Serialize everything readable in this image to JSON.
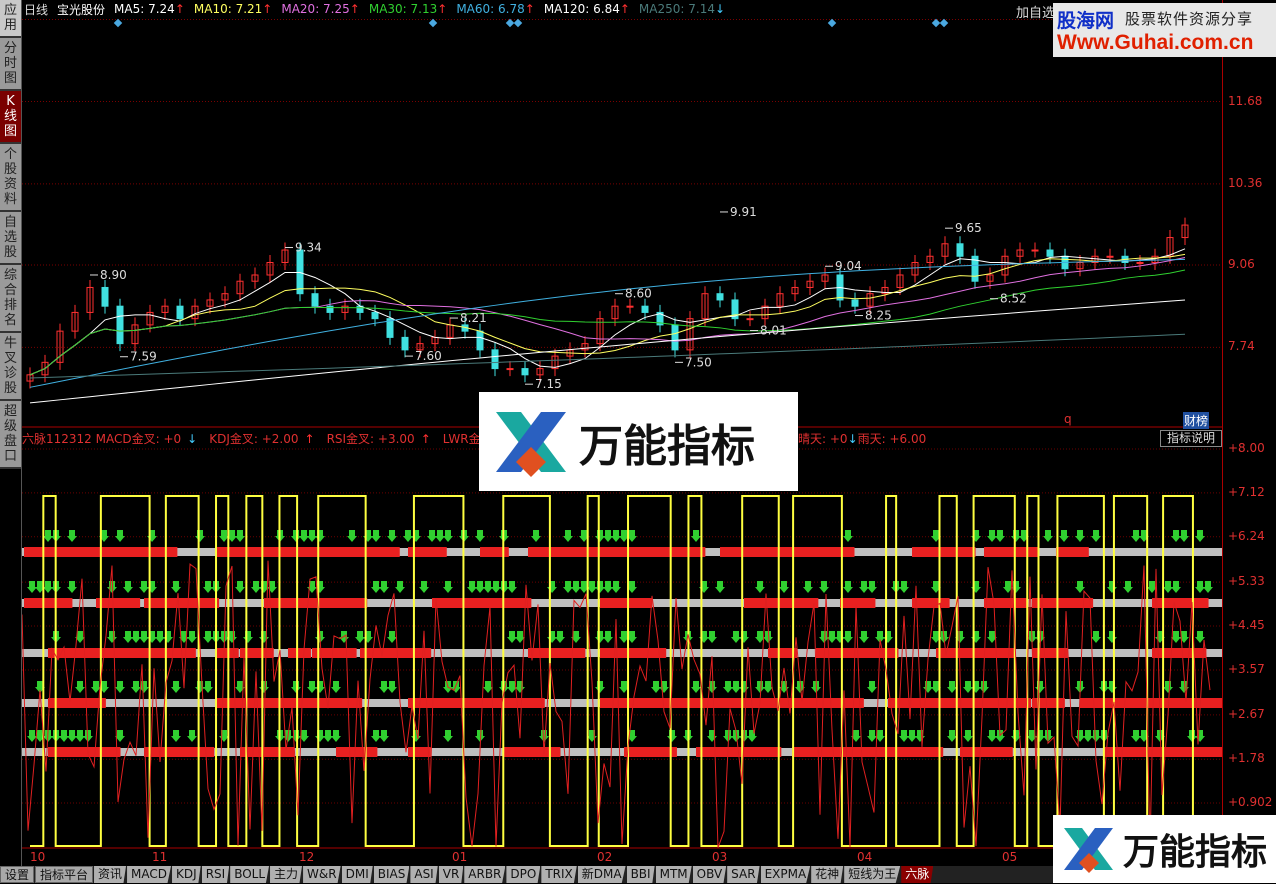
{
  "sidebar": {
    "items": [
      {
        "label": "应用",
        "icon": "play-pause-icon"
      },
      {
        "label": "分时图"
      },
      {
        "label": "K线图",
        "active": true
      },
      {
        "label": "个股资料"
      },
      {
        "label": "自选股"
      },
      {
        "label": "综合排名"
      },
      {
        "label": "牛叉诊股"
      },
      {
        "label": "超级盘口"
      }
    ]
  },
  "header": {
    "period": "日线",
    "stock_name": "宝光股份",
    "ma": [
      {
        "label": "MA5: 7.24",
        "dir": "up",
        "color": "#ffffff"
      },
      {
        "label": "MA10: 7.21",
        "dir": "up",
        "color": "#ffff60"
      },
      {
        "label": "MA20: 7.25",
        "dir": "up",
        "color": "#e070e0"
      },
      {
        "label": "MA30: 7.13",
        "dir": "up",
        "color": "#30d030"
      },
      {
        "label": "MA60: 6.78",
        "dir": "up",
        "color": "#40b0e0"
      },
      {
        "label": "MA120: 6.84",
        "dir": "up",
        "color": "#ffffff"
      },
      {
        "label": "MA250: 7.14",
        "dir": "down",
        "color": "#4a7a7a"
      }
    ],
    "add_watchlist": "加自选"
  },
  "banner": {
    "site": "股海网",
    "slogan": "股票软件资源分享",
    "url": "Www.Guhai.com.cn"
  },
  "watermark": {
    "text": "万能指标"
  },
  "price_axis": [
    "11.68",
    "10.36",
    "9.06",
    "7.74"
  ],
  "price_labels": [
    {
      "text": "8.90",
      "bar": 4,
      "price": 8.9
    },
    {
      "text": "7.59",
      "bar": 6,
      "price": 7.59
    },
    {
      "text": "9.34",
      "bar": 17,
      "price": 9.34
    },
    {
      "text": "7.60",
      "bar": 25,
      "price": 7.6
    },
    {
      "text": "8.21",
      "bar": 28,
      "price": 8.21
    },
    {
      "text": "7.15",
      "bar": 33,
      "price": 7.15
    },
    {
      "text": "8.60",
      "bar": 39,
      "price": 8.6
    },
    {
      "text": "7.50",
      "bar": 43,
      "price": 7.5
    },
    {
      "text": "9.91",
      "bar": 46,
      "price": 9.91
    },
    {
      "text": "8.01",
      "bar": 48,
      "price": 8.01
    },
    {
      "text": "9.04",
      "bar": 53,
      "price": 9.04
    },
    {
      "text": "8.25",
      "bar": 55,
      "price": 8.25
    },
    {
      "text": "9.65",
      "bar": 61,
      "price": 9.65
    },
    {
      "text": "8.52",
      "bar": 64,
      "price": 8.52
    }
  ],
  "closes": [
    7.3,
    7.5,
    8.0,
    8.3,
    8.7,
    8.4,
    7.8,
    8.1,
    8.3,
    8.4,
    8.2,
    8.4,
    8.5,
    8.6,
    8.8,
    8.9,
    9.1,
    9.3,
    8.6,
    8.4,
    8.3,
    8.4,
    8.3,
    8.2,
    7.9,
    7.7,
    7.8,
    7.9,
    8.1,
    8.0,
    7.7,
    7.4,
    7.4,
    7.3,
    7.4,
    7.6,
    7.7,
    7.8,
    8.2,
    8.4,
    8.4,
    8.3,
    8.1,
    7.7,
    8.2,
    8.6,
    8.5,
    8.2,
    8.2,
    8.4,
    8.6,
    8.7,
    8.8,
    8.9,
    8.5,
    8.4,
    8.6,
    8.7,
    8.9,
    9.1,
    9.2,
    9.4,
    9.2,
    8.8,
    8.9,
    9.2,
    9.3,
    9.3,
    9.2,
    9.0,
    9.1,
    9.2,
    9.2,
    9.1,
    9.1,
    9.2,
    9.5,
    9.7
  ],
  "chart_badges": {
    "q": "q",
    "caibang": "财榜"
  },
  "indicator": {
    "items": [
      {
        "text": "六脉112312 MACD金叉: +0",
        "dir": "down"
      },
      {
        "text": "KDJ金叉: +2.00",
        "dir": "up"
      },
      {
        "text": "RSI金叉: +3.00",
        "dir": "up"
      },
      {
        "text": "LWR金叉:",
        "dir": ""
      }
    ],
    "items_right": [
      {
        "text": "晴天: +0",
        "dir": "down"
      },
      {
        "text": "雨天: +6.00",
        "dir": ""
      }
    ],
    "explain_button": "指标说明",
    "axis": [
      "+8.00",
      "+7.12",
      "+6.24",
      "+5.33",
      "+4.45",
      "+3.57",
      "+2.67",
      "+1.78",
      "+0.902"
    ]
  },
  "months": [
    "10",
    "11",
    "12",
    "01",
    "02",
    "03",
    "04",
    "05"
  ],
  "tabs": [
    "设置",
    "指标平台",
    "资讯",
    "MACD",
    "KDJ",
    "RSI",
    "BOLL",
    "主力",
    "W&R",
    "DMI",
    "BIAS",
    "ASI",
    "VR",
    "ARBR",
    "DPO",
    "TRIX",
    "新DMA",
    "BBI",
    "MTM",
    "OBV",
    "SAR",
    "EXPMA",
    "花神",
    "短线为王",
    "六脉"
  ],
  "active_tab": "六脉",
  "colors": {
    "up": "#ff3030",
    "down": "#40e0e0",
    "grid": "#8a0000",
    "ma5": "#ffffff",
    "ma10": "#ffff60",
    "ma20": "#e070e0",
    "ma30": "#30d030",
    "ma60": "#40b0e0",
    "ma120": "#ffffff",
    "ma250": "#4a7a7a"
  }
}
